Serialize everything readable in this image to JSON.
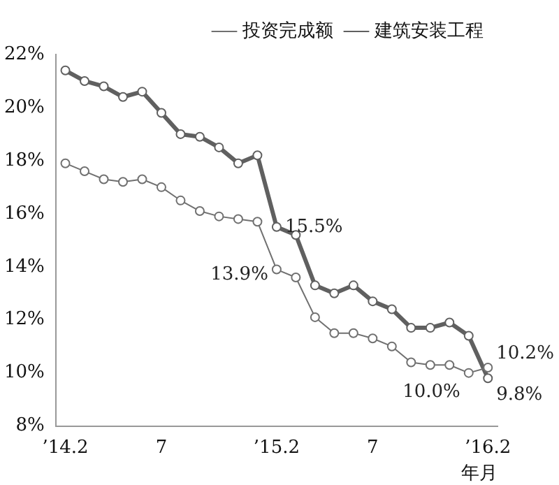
{
  "chart_data": {
    "type": "line",
    "xlabel": "年月",
    "categories": [
      "’14.2",
      null,
      null,
      null,
      null,
      "7",
      null,
      null,
      null,
      null,
      null,
      "’15.2",
      null,
      null,
      null,
      null,
      "7",
      null,
      null,
      null,
      null,
      null,
      "’16.2"
    ],
    "series": [
      {
        "name": "投资完成额",
        "color": "#707070",
        "values": [
          17.9,
          17.6,
          17.3,
          17.2,
          17.3,
          17.0,
          16.5,
          16.1,
          15.9,
          15.8,
          15.7,
          13.9,
          13.6,
          12.1,
          11.5,
          11.5,
          11.3,
          11.0,
          10.4,
          10.3,
          10.3,
          10.0,
          10.2
        ],
        "value_labels": [
          null,
          null,
          null,
          null,
          null,
          null,
          null,
          null,
          null,
          null,
          null,
          "13.9%",
          null,
          null,
          null,
          null,
          null,
          null,
          null,
          null,
          null,
          "10.0%",
          "10.2%"
        ]
      },
      {
        "name": "建筑安装工程",
        "color": "#606060",
        "values": [
          21.4,
          21.0,
          20.8,
          20.4,
          20.6,
          19.8,
          19.0,
          18.9,
          18.5,
          17.9,
          18.2,
          15.5,
          15.2,
          13.3,
          13.0,
          13.3,
          12.7,
          12.4,
          11.7,
          11.7,
          11.9,
          11.4,
          9.8
        ],
        "value_labels": [
          null,
          null,
          null,
          null,
          null,
          null,
          null,
          null,
          null,
          null,
          null,
          "15.5%",
          null,
          null,
          null,
          null,
          null,
          null,
          null,
          null,
          null,
          null,
          "9.8%"
        ]
      }
    ],
    "ylim": [
      8,
      22
    ],
    "yticks": [
      {
        "value": 8,
        "label": "8%"
      },
      {
        "value": 10,
        "label": "10%"
      },
      {
        "value": 12,
        "label": "12%"
      },
      {
        "value": 14,
        "label": "14%"
      },
      {
        "value": 16,
        "label": "16%"
      },
      {
        "value": 18,
        "label": "18%"
      },
      {
        "value": 20,
        "label": "20%"
      },
      {
        "value": 22,
        "label": "22%"
      }
    ],
    "grid": false,
    "legend": "top right",
    "marker": "circle",
    "line_style": "solid"
  }
}
